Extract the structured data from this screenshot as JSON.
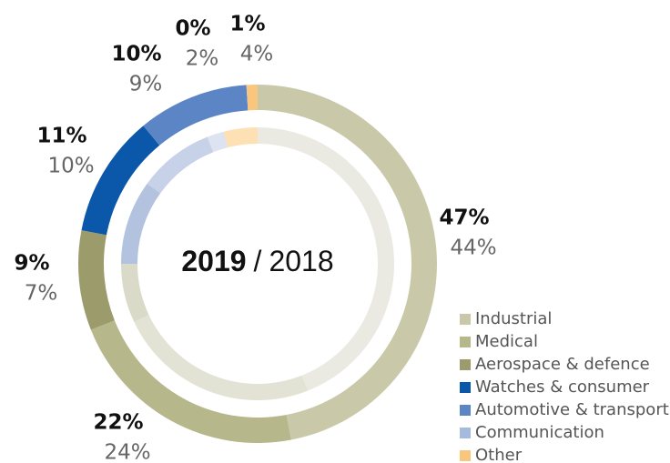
{
  "chart_data": {
    "type": "donut",
    "categories": [
      "Industrial",
      "Medical",
      "Aerospace & defence",
      "Watches & consumer",
      "Automotive & transport",
      "Communication",
      "Other"
    ],
    "series": [
      {
        "name": "2019",
        "ring": "outer",
        "values": [
          47,
          22,
          9,
          11,
          10,
          0,
          1
        ],
        "value_labels": [
          "47%",
          "22%",
          "9%",
          "11%",
          "10%",
          "0%",
          "1%"
        ],
        "colors": [
          "#c9c9aa",
          "#b7b78c",
          "#9b9b6b",
          "#0b57a9",
          "#5c85c5",
          "#a6badd",
          "#f8c67c"
        ]
      },
      {
        "name": "2018",
        "ring": "inner",
        "values": [
          44,
          24,
          7,
          10,
          9,
          2,
          4
        ],
        "value_labels": [
          "44%",
          "24%",
          "7%",
          "10%",
          "9%",
          "2%",
          "4%"
        ],
        "colors": [
          "#eaeae3",
          "#e3e3d5",
          "#dadac8",
          "#b3c3df",
          "#c7d1e8",
          "#dde3f1",
          "#fde1b5"
        ]
      }
    ],
    "center_separator": "/"
  }
}
